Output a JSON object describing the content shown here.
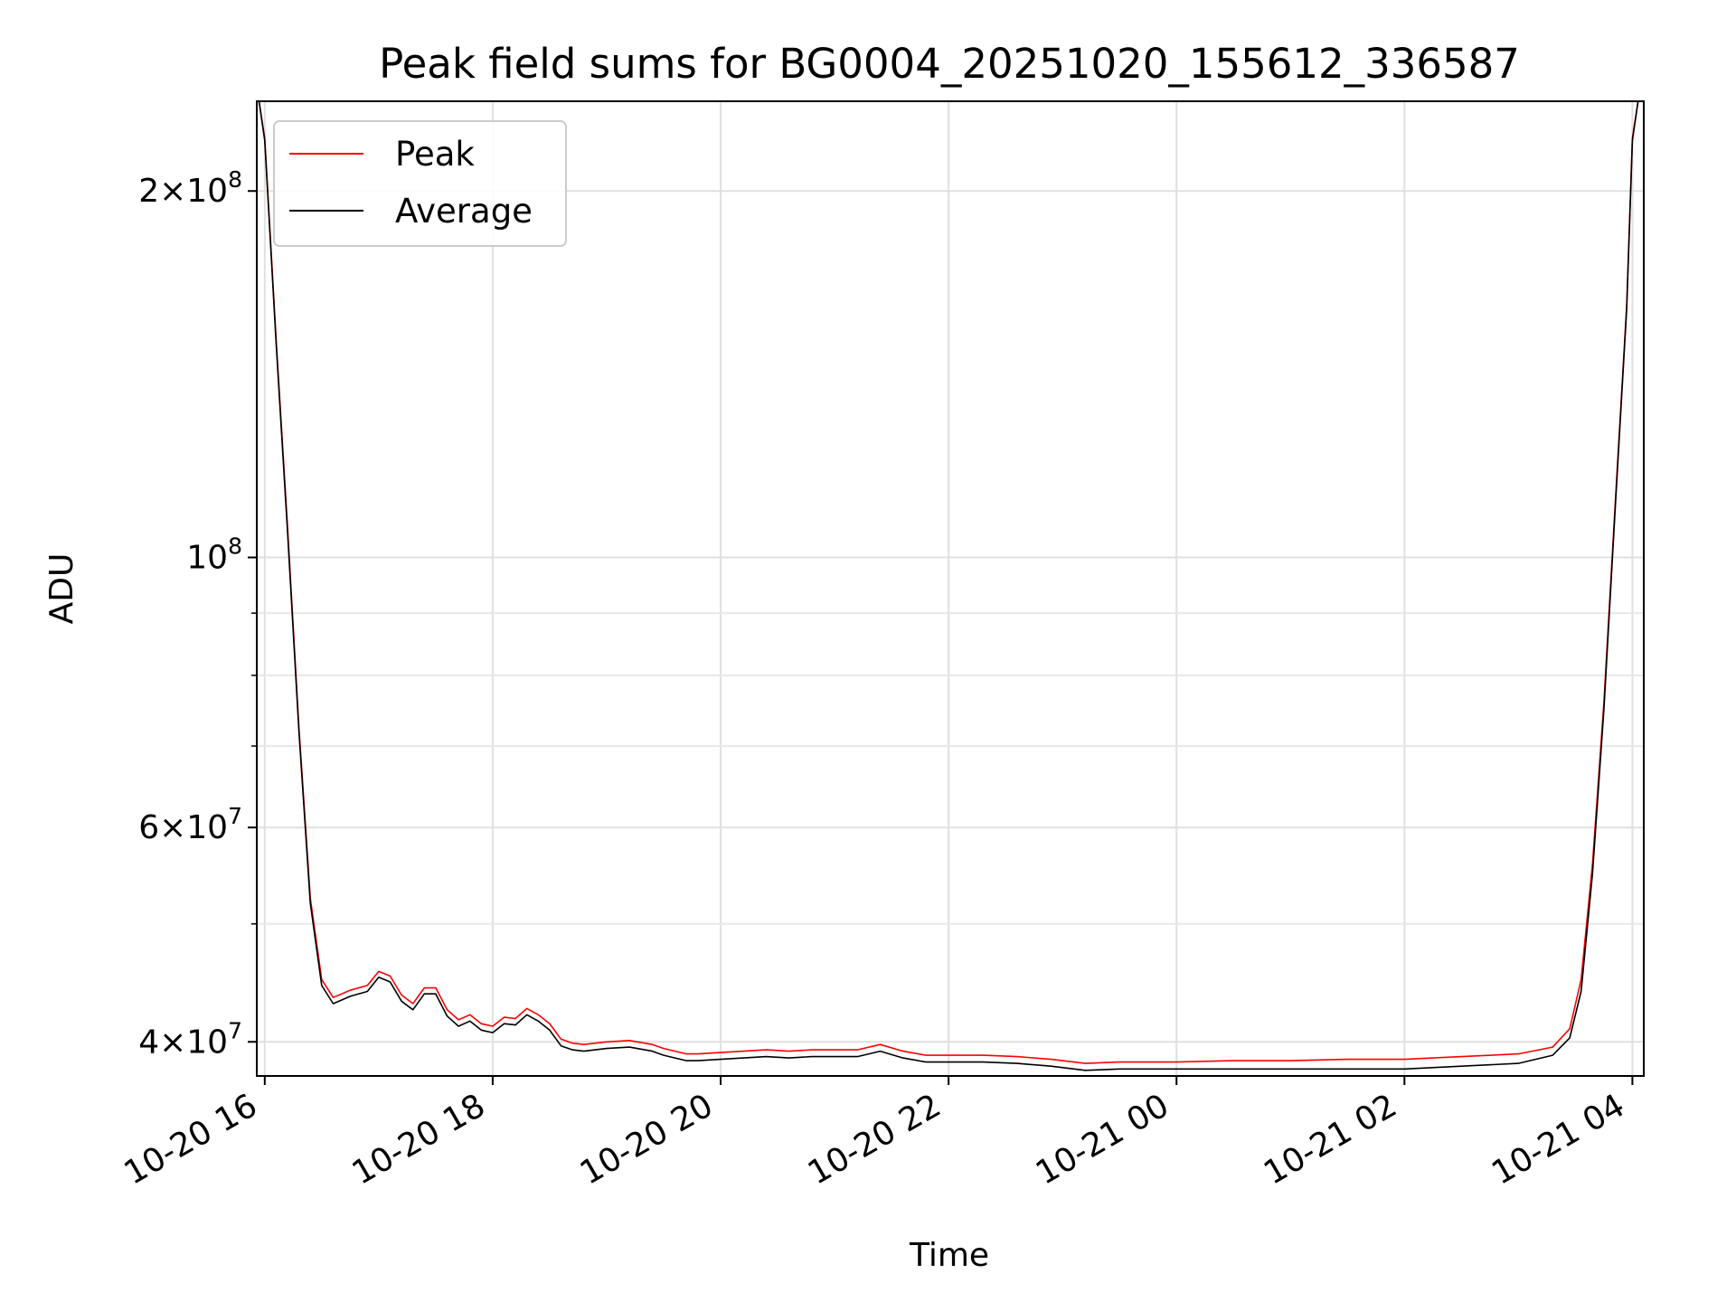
{
  "chart_data": {
    "type": "line",
    "title": "Peak field sums for BG0004_20251020_155612_336587",
    "xlabel": "Time",
    "ylabel": "ADU",
    "yscale": "log",
    "grid": true,
    "legend_position": "top-left",
    "xlim_hours": [
      -0.07,
      12.1
    ],
    "ylim": [
      37500000,
      237000000
    ],
    "x_ticks": [
      {
        "hour": 0,
        "label": "10-20 16"
      },
      {
        "hour": 2,
        "label": "10-20 18"
      },
      {
        "hour": 4,
        "label": "10-20 20"
      },
      {
        "hour": 6,
        "label": "10-20 22"
      },
      {
        "hour": 8,
        "label": "10-21 00"
      },
      {
        "hour": 10,
        "label": "10-21 02"
      },
      {
        "hour": 12,
        "label": "10-21 04"
      }
    ],
    "y_ticks": [
      {
        "value": 40000000,
        "mantissa": "4",
        "exp": "7"
      },
      {
        "value": 60000000,
        "mantissa": "6",
        "exp": "7"
      },
      {
        "value": 100000000,
        "mantissa": "",
        "exp": "8"
      },
      {
        "value": 200000000,
        "mantissa": "2",
        "exp": "8"
      }
    ],
    "y_minor_ticks": [
      50000000,
      70000000,
      80000000,
      90000000
    ],
    "series": [
      {
        "name": "Average",
        "color": "#000000",
        "x_hours": [
          -0.05,
          0.0,
          0.1,
          0.2,
          0.3,
          0.4,
          0.5,
          0.6,
          0.75,
          0.9,
          1.0,
          1.1,
          1.2,
          1.3,
          1.4,
          1.5,
          1.6,
          1.7,
          1.8,
          1.9,
          2.0,
          2.1,
          2.2,
          2.3,
          2.4,
          2.5,
          2.6,
          2.7,
          2.8,
          3.0,
          3.2,
          3.4,
          3.5,
          3.7,
          3.8,
          4.0,
          4.2,
          4.4,
          4.6,
          4.8,
          5.0,
          5.2,
          5.4,
          5.6,
          5.8,
          6.0,
          6.3,
          6.6,
          6.9,
          7.2,
          7.5,
          7.8,
          8.0,
          8.5,
          9.0,
          9.5,
          10.0,
          10.5,
          11.0,
          11.3,
          11.45,
          11.55,
          11.65,
          11.75,
          11.85,
          11.95,
          12.0,
          12.05
        ],
        "values": [
          237000000,
          220000000,
          150000000,
          105000000,
          72000000,
          52000000,
          44500000,
          43000000,
          43600000,
          44000000,
          45200000,
          44800000,
          43200000,
          42500000,
          43800000,
          43800000,
          42000000,
          41200000,
          41600000,
          40900000,
          40700000,
          41400000,
          41300000,
          42100000,
          41600000,
          40900000,
          39700000,
          39400000,
          39300000,
          39500000,
          39600000,
          39300000,
          39000000,
          38600000,
          38600000,
          38700000,
          38800000,
          38900000,
          38800000,
          38900000,
          38900000,
          38900000,
          39300000,
          38800000,
          38500000,
          38500000,
          38500000,
          38400000,
          38200000,
          37900000,
          38000000,
          38000000,
          38000000,
          38000000,
          38000000,
          38000000,
          38000000,
          38200000,
          38400000,
          39000000,
          40300000,
          44000000,
          55000000,
          75000000,
          110000000,
          160000000,
          220000000,
          237000000
        ]
      },
      {
        "name": "Peak",
        "color": "#ff0000",
        "x_hours": [
          -0.05,
          0.0,
          0.1,
          0.2,
          0.3,
          0.4,
          0.5,
          0.6,
          0.75,
          0.9,
          1.0,
          1.1,
          1.2,
          1.3,
          1.4,
          1.5,
          1.6,
          1.7,
          1.8,
          1.9,
          2.0,
          2.1,
          2.2,
          2.3,
          2.4,
          2.5,
          2.6,
          2.7,
          2.8,
          3.0,
          3.2,
          3.4,
          3.5,
          3.7,
          3.8,
          4.0,
          4.2,
          4.4,
          4.6,
          4.8,
          5.0,
          5.2,
          5.4,
          5.6,
          5.8,
          6.0,
          6.3,
          6.6,
          6.9,
          7.2,
          7.5,
          7.8,
          8.0,
          8.5,
          9.0,
          9.5,
          10.0,
          10.5,
          11.0,
          11.3,
          11.45,
          11.55,
          11.65,
          11.75,
          11.85,
          11.95,
          12.0,
          12.05
        ],
        "values": [
          237000000,
          221000000,
          151000000,
          106000000,
          72500000,
          52500000,
          45000000,
          43500000,
          44100000,
          44500000,
          45700000,
          45300000,
          43700000,
          43000000,
          44300000,
          44300000,
          42500000,
          41700000,
          42100000,
          41400000,
          41200000,
          41900000,
          41800000,
          42600000,
          42100000,
          41400000,
          40200000,
          39900000,
          39800000,
          40000000,
          40100000,
          39800000,
          39500000,
          39100000,
          39100000,
          39200000,
          39300000,
          39400000,
          39300000,
          39400000,
          39400000,
          39400000,
          39800000,
          39300000,
          39000000,
          39000000,
          39000000,
          38900000,
          38700000,
          38400000,
          38500000,
          38500000,
          38500000,
          38600000,
          38600000,
          38700000,
          38700000,
          38900000,
          39100000,
          39600000,
          41000000,
          45000000,
          56000000,
          76000000,
          111000000,
          161000000,
          221000000,
          237000000
        ]
      }
    ]
  },
  "legend": [
    {
      "label": "Peak",
      "color": "#ff0000"
    },
    {
      "label": "Average",
      "color": "#000000"
    }
  ]
}
